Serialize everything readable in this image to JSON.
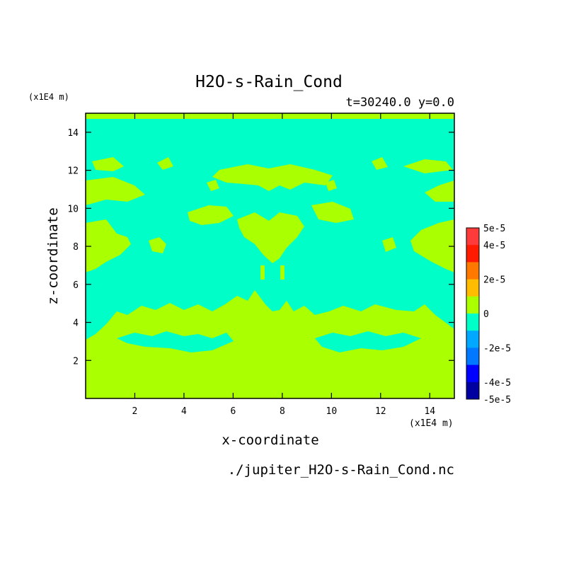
{
  "chart_data": {
    "type": "heatmap",
    "title": "H2O-s-Rain_Cond",
    "subtitle": "t=30240.0 y=0.0",
    "xlabel": "x-coordinate",
    "ylabel": "z-coordinate",
    "x_unit": "(x1E4 m)",
    "y_unit": "(x1E4 m)",
    "footer": "./jupiter_H2O-s-Rain_Cond.nc",
    "xlim": [
      0,
      15
    ],
    "ylim": [
      0,
      15
    ],
    "x_ticks": [
      2,
      4,
      6,
      8,
      10,
      12,
      14
    ],
    "y_ticks": [
      2,
      4,
      6,
      8,
      10,
      12,
      14
    ],
    "levels": [
      -5e-05,
      -4e-05,
      -2e-05,
      0,
      2e-05,
      4e-05,
      5e-05
    ],
    "colorbar_labels": [
      "5e-5",
      "4e-5",
      "2e-5",
      "0",
      "-2e-5",
      "-4e-5",
      "-5e-5"
    ],
    "colorbar_colors": [
      "#ff3a3a",
      "#ff1a00",
      "#ff7800",
      "#ffbc00",
      "#aaff00",
      "#00ffc8",
      "#00a8ff",
      "#0078ff",
      "#0000ff",
      "#0000a0"
    ],
    "field_colors": {
      "positive_small": "#aaff00",
      "negative_small": "#00ffc8"
    },
    "regions": {
      "negative_small_domain": {
        "x": [
          0,
          15
        ],
        "z": [
          3.0,
          14.7
        ]
      },
      "positive_small_domain": [
        {
          "x": [
            0,
            15
          ],
          "z": [
            0,
            3.0
          ]
        },
        {
          "x": [
            0,
            15
          ],
          "z": [
            14.7,
            15
          ]
        }
      ]
    }
  }
}
